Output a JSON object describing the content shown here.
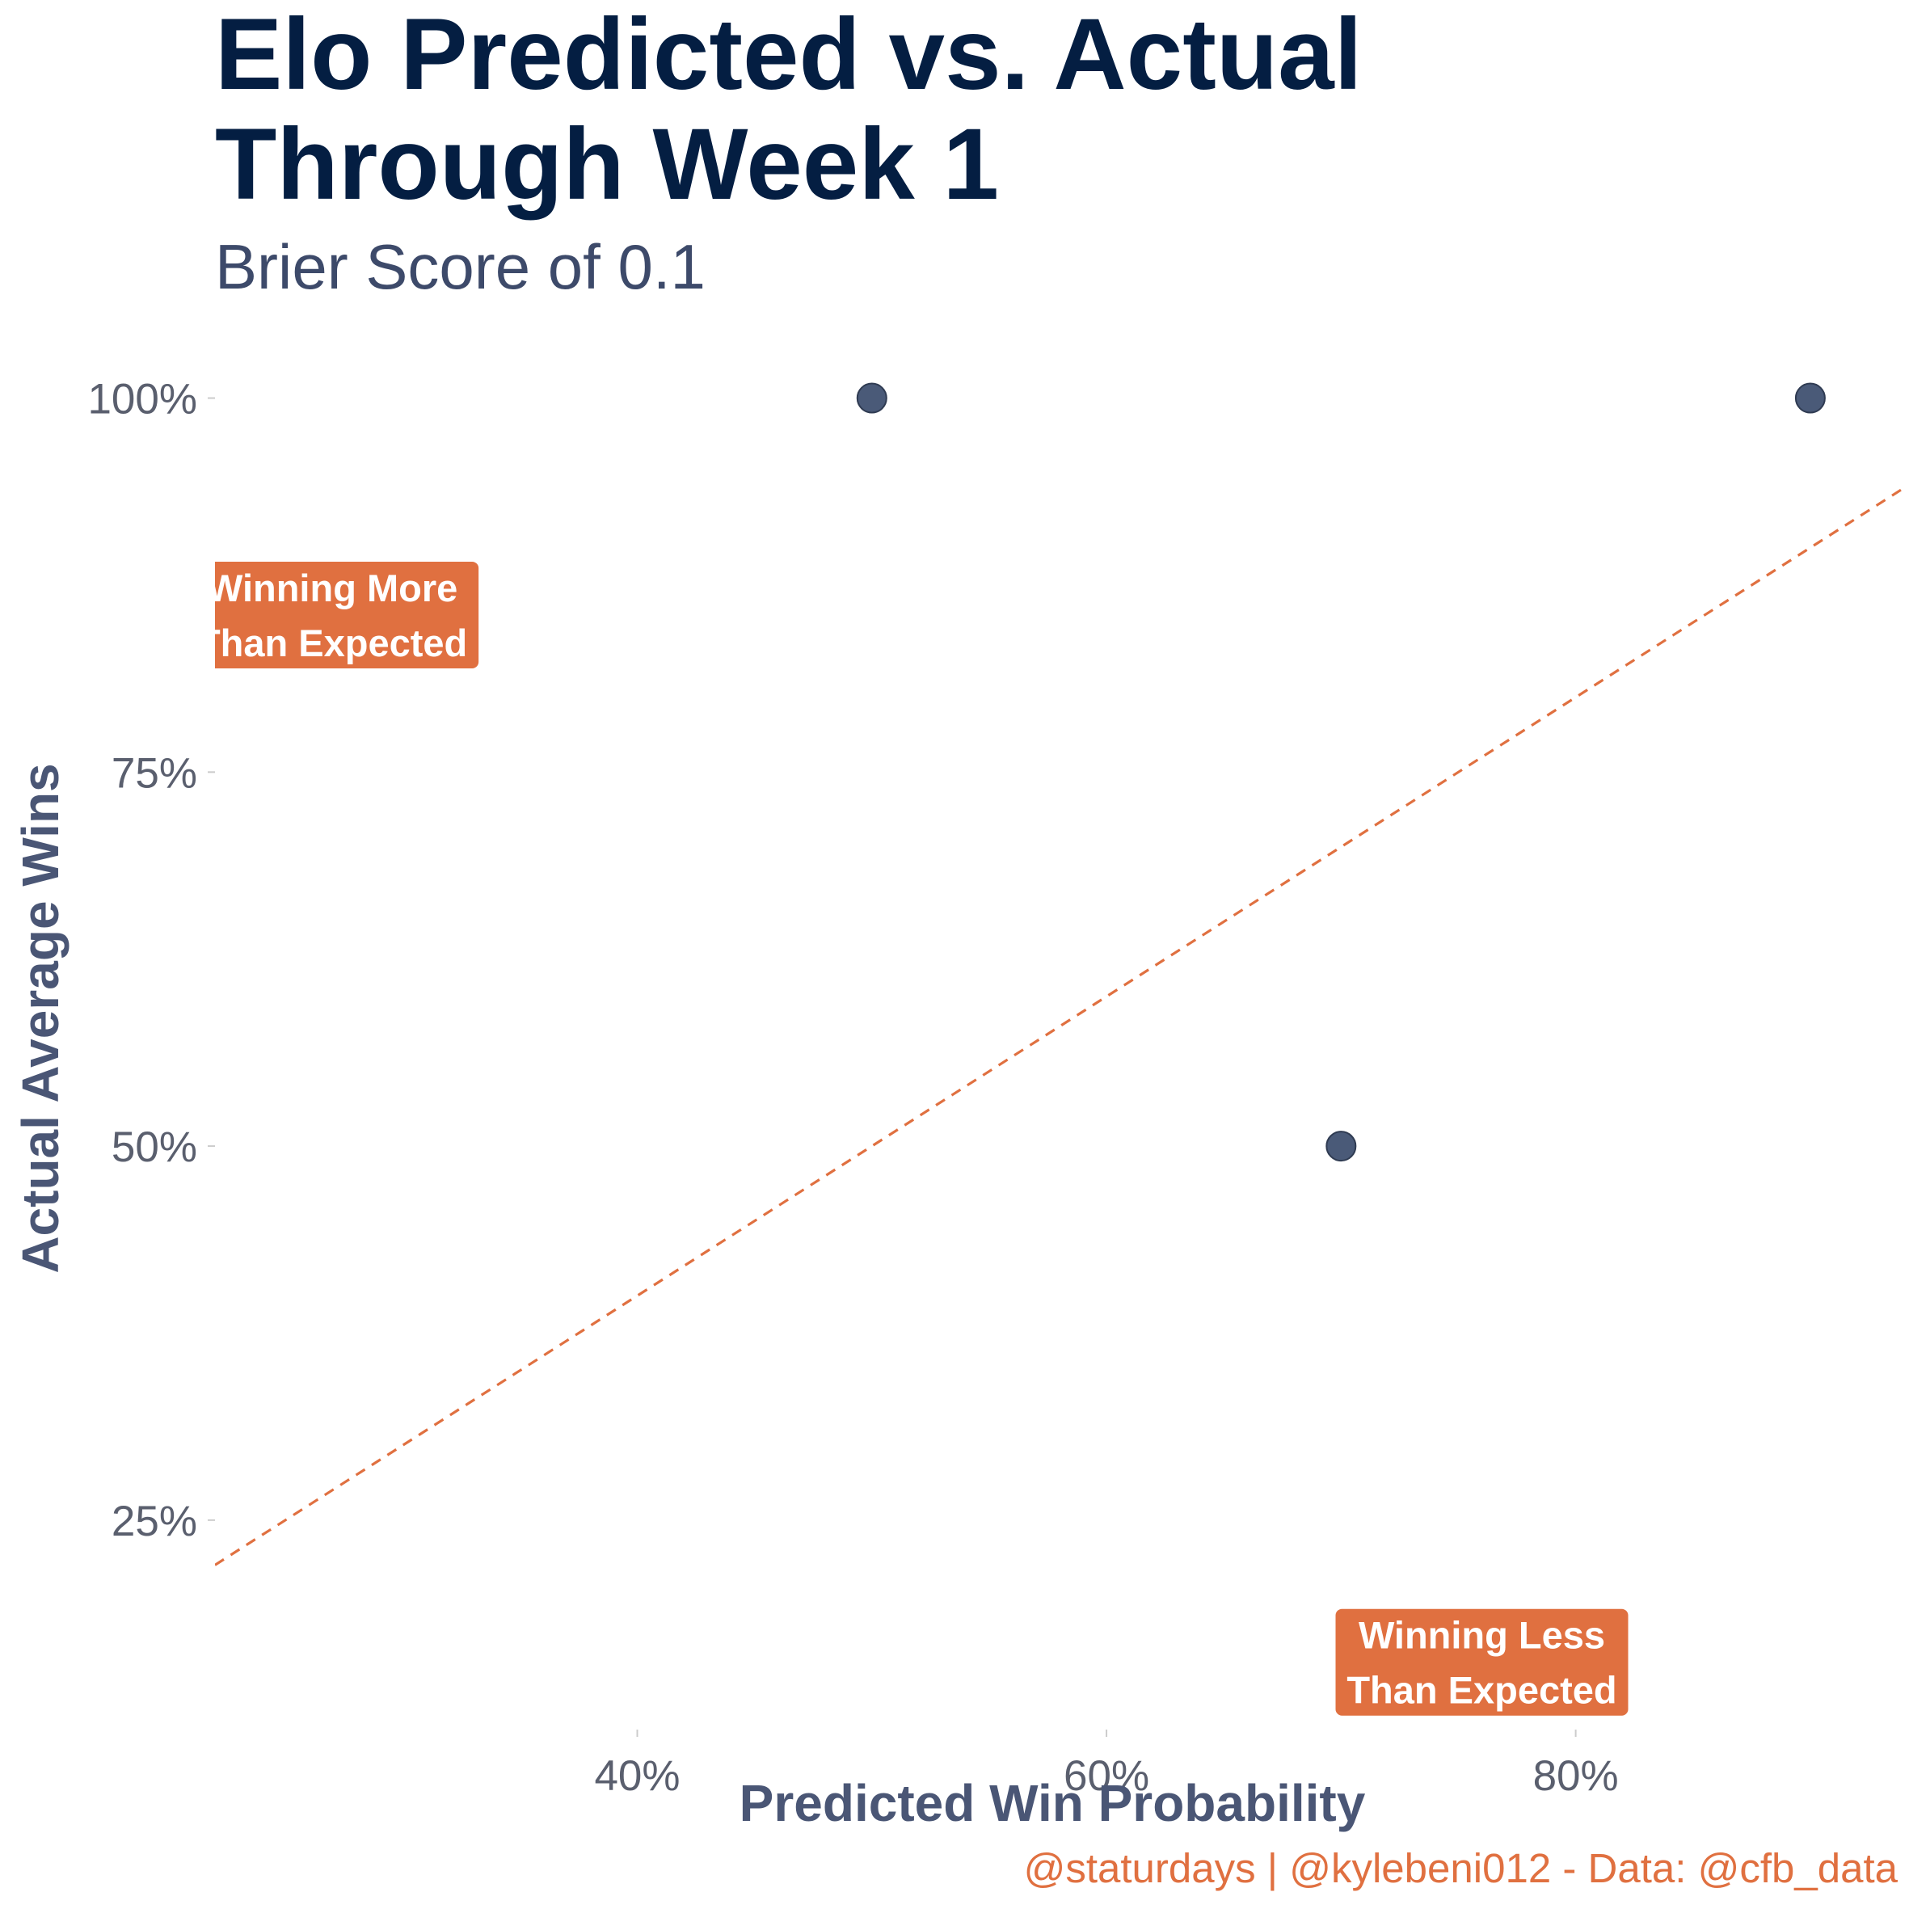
{
  "chart_data": {
    "type": "scatter",
    "title": "Elo Predicted vs. Actual\nThrough Week 1",
    "subtitle": "Brier Score of 0.1",
    "xlabel": "Predicted Win Probability",
    "ylabel": "Actual Average Wins",
    "caption": "@staturdays | @kylebeni012 - Data: @cfb_data",
    "xlim": [
      0.22,
      0.94
    ],
    "ylim": [
      0.11,
      1.05
    ],
    "x_ticks": [
      0.4,
      0.6,
      0.8
    ],
    "x_tick_labels": [
      "40%",
      "60%",
      "80%"
    ],
    "y_ticks": [
      0.25,
      0.5,
      0.75,
      1.0
    ],
    "y_tick_labels": [
      "25%",
      "50%",
      "75%",
      "100%"
    ],
    "points": [
      {
        "x": 0.5,
        "y": 1.0
      },
      {
        "x": 0.9,
        "y": 1.0
      },
      {
        "x": 0.7,
        "y": 0.5
      }
    ],
    "reference_line": {
      "type": "y = x",
      "style": "dashed",
      "color": "#e07040"
    },
    "annotations": [
      {
        "x": 0.27,
        "y": 0.855,
        "lines": [
          "Winning More",
          "Than Expected"
        ]
      },
      {
        "x": 0.76,
        "y": 0.155,
        "lines": [
          "Winning Less",
          "Than Expected"
        ]
      }
    ],
    "grid": false,
    "legend": "none",
    "colors": {
      "point": "#4a5a78",
      "line": "#e07040",
      "label_fill": "#e07040",
      "title": "#041e42"
    }
  }
}
